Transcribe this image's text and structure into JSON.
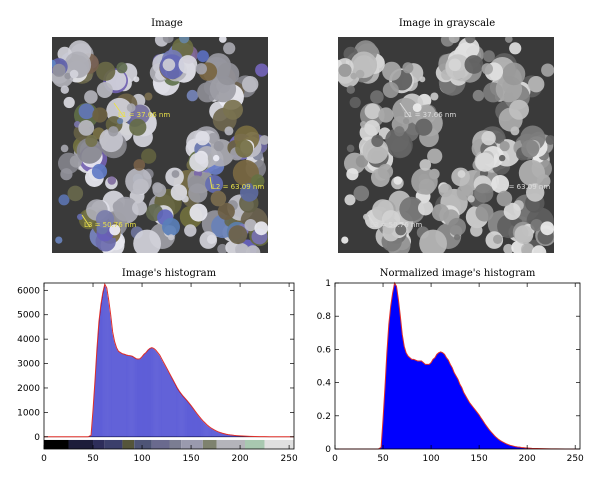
{
  "titles": {
    "image": "Image",
    "grayscale": "Image in grayscale",
    "histogram": "Image's histogram",
    "normalized": "Normalized image's histogram"
  },
  "image_annotations": {
    "l1": "L1 = 37.66 nm",
    "l2": "L2 = 63.09 nm",
    "l3": "L3 = 50.76 nm"
  },
  "colors": {
    "hist_bar": "#2020c8",
    "hist_envelope": "#e0302a",
    "norm_fill": "#0000ff",
    "annotation_color": "#e8e04a",
    "annotation_gray": "#dcdcdc"
  },
  "chart_data": [
    {
      "type": "bar",
      "title": "Image's histogram",
      "xlabel": "",
      "ylabel": "",
      "xlim": [
        0,
        255
      ],
      "ylim": [
        -500,
        6300
      ],
      "x_ticks": [
        0,
        50,
        100,
        150,
        200,
        250
      ],
      "y_ticks": [
        0,
        1000,
        2000,
        3000,
        4000,
        5000,
        6000
      ],
      "colorbar": [
        {
          "from": 0,
          "to": 25,
          "color": "#000000"
        },
        {
          "from": 25,
          "to": 50,
          "color": "#1c1c3a"
        },
        {
          "from": 50,
          "to": 62,
          "color": "#2d2d5a"
        },
        {
          "from": 62,
          "to": 80,
          "color": "#3b3f6b"
        },
        {
          "from": 80,
          "to": 92,
          "color": "#55553a"
        },
        {
          "from": 92,
          "to": 110,
          "color": "#4e5476"
        },
        {
          "from": 110,
          "to": 128,
          "color": "#6a6a8e"
        },
        {
          "from": 128,
          "to": 140,
          "color": "#7b7d92"
        },
        {
          "from": 140,
          "to": 162,
          "color": "#9a9aae"
        },
        {
          "from": 162,
          "to": 176,
          "color": "#7e826e"
        },
        {
          "from": 176,
          "to": 205,
          "color": "#b4b4ba"
        },
        {
          "from": 205,
          "to": 225,
          "color": "#a8c8b0"
        },
        {
          "from": 225,
          "to": 255,
          "color": "#e0e0e0"
        }
      ],
      "points": [
        [
          0,
          0
        ],
        [
          45,
          0
        ],
        [
          48,
          60
        ],
        [
          50,
          1100
        ],
        [
          52,
          2300
        ],
        [
          54,
          3600
        ],
        [
          56,
          4700
        ],
        [
          58,
          5400
        ],
        [
          60,
          5900
        ],
        [
          62,
          6250
        ],
        [
          64,
          6100
        ],
        [
          66,
          5600
        ],
        [
          68,
          5000
        ],
        [
          70,
          4300
        ],
        [
          72,
          3900
        ],
        [
          74,
          3650
        ],
        [
          76,
          3500
        ],
        [
          78,
          3450
        ],
        [
          80,
          3400
        ],
        [
          82,
          3380
        ],
        [
          84,
          3350
        ],
        [
          86,
          3330
        ],
        [
          88,
          3320
        ],
        [
          90,
          3300
        ],
        [
          92,
          3250
        ],
        [
          94,
          3200
        ],
        [
          96,
          3180
        ],
        [
          98,
          3200
        ],
        [
          100,
          3280
        ],
        [
          102,
          3380
        ],
        [
          104,
          3450
        ],
        [
          106,
          3550
        ],
        [
          108,
          3620
        ],
        [
          110,
          3650
        ],
        [
          112,
          3620
        ],
        [
          114,
          3550
        ],
        [
          116,
          3450
        ],
        [
          118,
          3350
        ],
        [
          120,
          3200
        ],
        [
          122,
          3050
        ],
        [
          124,
          2900
        ],
        [
          126,
          2750
        ],
        [
          128,
          2600
        ],
        [
          130,
          2450
        ],
        [
          132,
          2300
        ],
        [
          134,
          2150
        ],
        [
          136,
          2000
        ],
        [
          138,
          1870
        ],
        [
          140,
          1760
        ],
        [
          142,
          1660
        ],
        [
          144,
          1570
        ],
        [
          146,
          1480
        ],
        [
          148,
          1380
        ],
        [
          150,
          1280
        ],
        [
          152,
          1170
        ],
        [
          154,
          1060
        ],
        [
          156,
          950
        ],
        [
          158,
          850
        ],
        [
          160,
          750
        ],
        [
          162,
          660
        ],
        [
          164,
          580
        ],
        [
          166,
          500
        ],
        [
          168,
          430
        ],
        [
          170,
          370
        ],
        [
          172,
          320
        ],
        [
          174,
          275
        ],
        [
          176,
          235
        ],
        [
          178,
          200
        ],
        [
          180,
          170
        ],
        [
          182,
          145
        ],
        [
          184,
          125
        ],
        [
          186,
          105
        ],
        [
          188,
          90
        ],
        [
          190,
          78
        ],
        [
          192,
          68
        ],
        [
          194,
          58
        ],
        [
          196,
          50
        ],
        [
          198,
          43
        ],
        [
          200,
          37
        ],
        [
          205,
          26
        ],
        [
          210,
          18
        ],
        [
          215,
          12
        ],
        [
          220,
          8
        ],
        [
          225,
          5
        ],
        [
          230,
          3
        ],
        [
          240,
          1
        ],
        [
          255,
          0
        ]
      ]
    },
    {
      "type": "area",
      "title": "Normalized image's histogram",
      "xlabel": "",
      "ylabel": "",
      "xlim": [
        0,
        255
      ],
      "ylim": [
        0,
        1
      ],
      "x_ticks": [
        0,
        50,
        100,
        150,
        200,
        250
      ],
      "y_ticks": [
        0,
        0.2,
        0.4,
        0.6,
        0.8,
        1
      ],
      "points": [
        [
          0,
          0
        ],
        [
          45,
          0
        ],
        [
          48,
          0.01
        ],
        [
          50,
          0.18
        ],
        [
          52,
          0.37
        ],
        [
          54,
          0.58
        ],
        [
          56,
          0.75
        ],
        [
          58,
          0.86
        ],
        [
          60,
          0.94
        ],
        [
          62,
          1.0
        ],
        [
          64,
          0.98
        ],
        [
          66,
          0.9
        ],
        [
          68,
          0.8
        ],
        [
          70,
          0.69
        ],
        [
          72,
          0.62
        ],
        [
          74,
          0.58
        ],
        [
          76,
          0.56
        ],
        [
          78,
          0.55
        ],
        [
          80,
          0.54
        ],
        [
          82,
          0.54
        ],
        [
          84,
          0.535
        ],
        [
          86,
          0.53
        ],
        [
          88,
          0.53
        ],
        [
          90,
          0.53
        ],
        [
          92,
          0.52
        ],
        [
          94,
          0.51
        ],
        [
          96,
          0.51
        ],
        [
          98,
          0.51
        ],
        [
          100,
          0.52
        ],
        [
          102,
          0.54
        ],
        [
          104,
          0.55
        ],
        [
          106,
          0.57
        ],
        [
          108,
          0.58
        ],
        [
          110,
          0.585
        ],
        [
          112,
          0.58
        ],
        [
          114,
          0.57
        ],
        [
          116,
          0.55
        ],
        [
          118,
          0.535
        ],
        [
          120,
          0.51
        ],
        [
          122,
          0.49
        ],
        [
          124,
          0.46
        ],
        [
          126,
          0.44
        ],
        [
          128,
          0.42
        ],
        [
          130,
          0.39
        ],
        [
          132,
          0.37
        ],
        [
          134,
          0.34
        ],
        [
          136,
          0.32
        ],
        [
          138,
          0.3
        ],
        [
          140,
          0.28
        ],
        [
          142,
          0.265
        ],
        [
          144,
          0.25
        ],
        [
          146,
          0.235
        ],
        [
          148,
          0.22
        ],
        [
          150,
          0.205
        ],
        [
          152,
          0.187
        ],
        [
          154,
          0.17
        ],
        [
          156,
          0.152
        ],
        [
          158,
          0.136
        ],
        [
          160,
          0.12
        ],
        [
          162,
          0.106
        ],
        [
          164,
          0.093
        ],
        [
          166,
          0.08
        ],
        [
          168,
          0.069
        ],
        [
          170,
          0.059
        ],
        [
          172,
          0.051
        ],
        [
          174,
          0.044
        ],
        [
          176,
          0.038
        ],
        [
          178,
          0.032
        ],
        [
          180,
          0.027
        ],
        [
          182,
          0.023
        ],
        [
          184,
          0.02
        ],
        [
          186,
          0.017
        ],
        [
          188,
          0.014
        ],
        [
          190,
          0.012
        ],
        [
          192,
          0.011
        ],
        [
          194,
          0.009
        ],
        [
          196,
          0.008
        ],
        [
          198,
          0.007
        ],
        [
          200,
          0.006
        ],
        [
          205,
          0.004
        ],
        [
          210,
          0.003
        ],
        [
          215,
          0.002
        ],
        [
          220,
          0.0013
        ],
        [
          225,
          0.0008
        ],
        [
          230,
          0.0005
        ],
        [
          240,
          0.0002
        ],
        [
          255,
          0
        ]
      ]
    }
  ]
}
